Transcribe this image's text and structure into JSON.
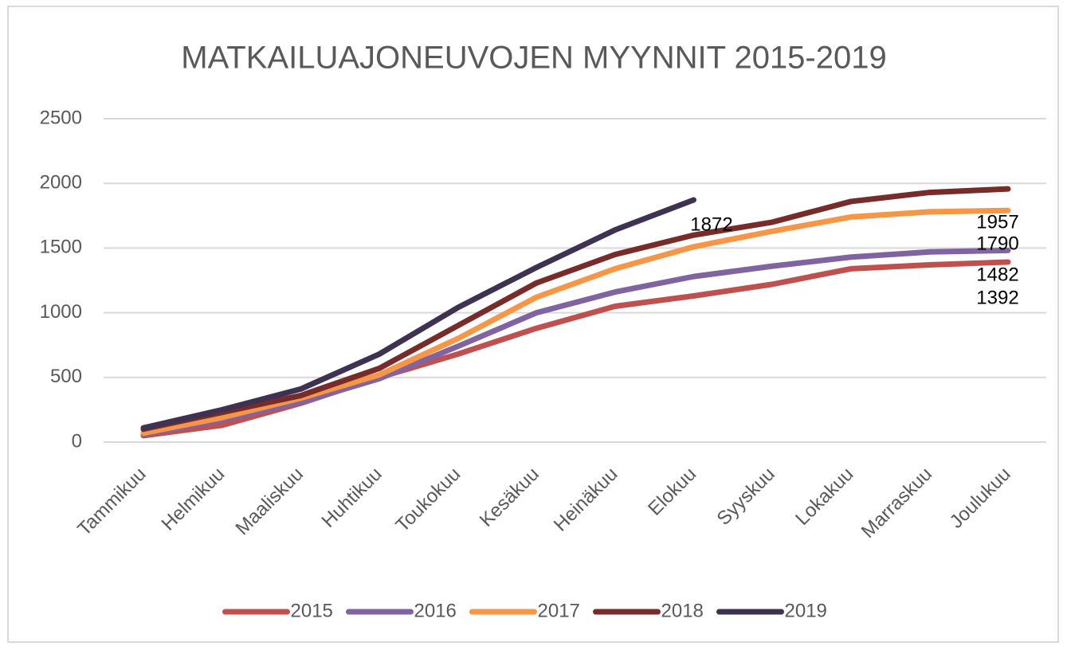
{
  "chart_data": {
    "type": "line",
    "title": "MATKAILUAJONEUVOJEN MYYNNIT 2015-2019",
    "categories": [
      "Tammikuu",
      "Helmikuu",
      "Maaliskuu",
      "Huhtikuu",
      "Toukokuu",
      "Kesäkuu",
      "Heinäkuu",
      "Elokuu",
      "Syyskuu",
      "Lokakuu",
      "Marraskuu",
      "Joulukuu"
    ],
    "series": [
      {
        "name": "2015",
        "color": "#c0504d",
        "values": [
          50,
          130,
          300,
          500,
          680,
          880,
          1050,
          1130,
          1220,
          1340,
          1370,
          1392
        ]
      },
      {
        "name": "2016",
        "color": "#8064a2",
        "values": [
          60,
          170,
          310,
          490,
          740,
          1000,
          1160,
          1280,
          1360,
          1430,
          1470,
          1482
        ]
      },
      {
        "name": "2017",
        "color": "#f79646",
        "values": [
          70,
          190,
          340,
          520,
          800,
          1120,
          1340,
          1510,
          1630,
          1740,
          1780,
          1790
        ]
      },
      {
        "name": "2018",
        "color": "#772c2a",
        "values": [
          100,
          230,
          360,
          570,
          900,
          1230,
          1450,
          1600,
          1700,
          1860,
          1930,
          1957
        ]
      },
      {
        "name": "2019",
        "color": "#3f3151",
        "values": [
          110,
          250,
          410,
          680,
          1040,
          1350,
          1640,
          1872,
          null,
          null,
          null,
          null
        ]
      }
    ],
    "ylim": [
      0,
      2500
    ],
    "yticks": [
      0,
      500,
      1000,
      1500,
      2000,
      2500
    ],
    "grid": true,
    "legend": "bottom"
  }
}
